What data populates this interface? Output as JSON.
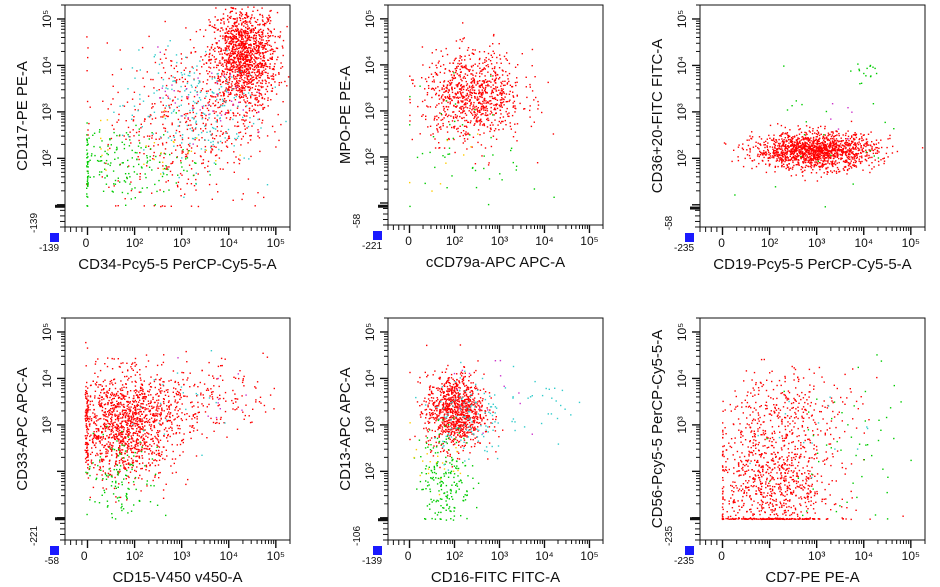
{
  "chart_data": [
    {
      "type": "scatter",
      "xlabel": "CD34-Pcy5-5 PerCP-Cy5-5-A",
      "ylabel": "CD117-PE PE-A",
      "x_min_label": "-139",
      "y_min_label": "-139",
      "x_ticks": [
        "0",
        "10²",
        "10³",
        "10⁴",
        "10⁵"
      ],
      "y_ticks": [
        "10²",
        "10³",
        "10⁴",
        "10⁵"
      ],
      "xlim": [
        -139,
        200000
      ],
      "ylim": [
        -139,
        200000
      ],
      "clusters": [
        {
          "color": "#ff0000",
          "x": 20000,
          "y": 15000,
          "sx": 0.22,
          "sy": 0.35,
          "n": 1400
        },
        {
          "color": "#ff0000",
          "x": 1200,
          "y": 600,
          "sx": 0.55,
          "sy": 0.55,
          "n": 500
        },
        {
          "color": "#00cc00",
          "x": 40,
          "y": 80,
          "sx": 0.5,
          "sy": 0.25,
          "n": 200
        },
        {
          "color": "#33cccc",
          "x": 1500,
          "y": 1200,
          "sx": 0.45,
          "sy": 0.4,
          "n": 220
        },
        {
          "color": "#cc33cc",
          "x": 3000,
          "y": 2500,
          "sx": 0.3,
          "sy": 0.3,
          "n": 40
        },
        {
          "color": "#ffcc00",
          "x": 300,
          "y": 200,
          "sx": 0.5,
          "sy": 0.3,
          "n": 25
        }
      ]
    },
    {
      "type": "scatter",
      "xlabel": "cCD79a-APC APC-A",
      "ylabel": "MPO-PE PE-A",
      "x_min_label": "-221",
      "y_min_label": "-58",
      "x_ticks": [
        "0",
        "10²",
        "10³",
        "10⁴",
        "10⁵"
      ],
      "y_ticks": [
        "10²",
        "10³",
        "10⁴",
        "10⁵"
      ],
      "xlim": [
        -221,
        200000
      ],
      "ylim": [
        -58,
        200000
      ],
      "clusters": [
        {
          "color": "#ff0000",
          "x": 250,
          "y": 2200,
          "sx": 0.35,
          "sy": 0.3,
          "n": 900
        },
        {
          "color": "#00cc00",
          "x": 300,
          "y": 150,
          "sx": 0.45,
          "sy": 0.45,
          "n": 50
        },
        {
          "color": "#ffcc00",
          "x": 100,
          "y": 80,
          "sx": 0.3,
          "sy": 0.3,
          "n": 8
        }
      ]
    },
    {
      "type": "scatter",
      "xlabel": "CD19-Pcy5-5 PerCP-Cy5-5-A",
      "ylabel": "CD36+20-FITC FITC-A",
      "x_min_label": "-235",
      "y_min_label": "-58",
      "x_ticks": [
        "0",
        "10²",
        "10³",
        "10⁴",
        "10⁵"
      ],
      "y_ticks": [
        "10²",
        "10³",
        "10⁴",
        "10⁵"
      ],
      "xlim": [
        -235,
        200000
      ],
      "ylim": [
        -58,
        200000
      ],
      "clusters": [
        {
          "color": "#ff0000",
          "x": 900,
          "y": 150,
          "sx": 0.4,
          "sy": 0.12,
          "n": 1500
        },
        {
          "color": "#00cc00",
          "x": 12000,
          "y": 7000,
          "sx": 0.1,
          "sy": 0.1,
          "n": 15
        },
        {
          "color": "#00cc00",
          "x": 2000,
          "y": 400,
          "sx": 0.6,
          "sy": 0.5,
          "n": 25
        },
        {
          "color": "#cc33cc",
          "x": 2500,
          "y": 600,
          "sx": 0.3,
          "sy": 0.3,
          "n": 6
        }
      ]
    },
    {
      "type": "scatter",
      "xlabel": "CD15-V450 v450-A",
      "ylabel": "CD33-APC APC-A",
      "x_min_label": "-58",
      "y_min_label": "-221",
      "x_ticks": [
        "0",
        "10²",
        "10³",
        "10⁴",
        "10⁵"
      ],
      "y_ticks": [
        "10³",
        "10⁴",
        "10⁵"
      ],
      "xlim": [
        -58,
        200000
      ],
      "ylim": [
        -221,
        200000
      ],
      "clusters": [
        {
          "color": "#ff0000",
          "x": 60,
          "y": 1000,
          "sx": 0.35,
          "sy": 0.35,
          "n": 1300
        },
        {
          "color": "#ff0000",
          "x": 1500,
          "y": 4000,
          "sx": 0.5,
          "sy": 0.25,
          "n": 250
        },
        {
          "color": "#00cc00",
          "x": 50,
          "y": 80,
          "sx": 0.25,
          "sy": 0.3,
          "n": 120
        },
        {
          "color": "#33cccc",
          "x": 1200,
          "y": 3000,
          "sx": 0.4,
          "sy": 0.3,
          "n": 20
        },
        {
          "color": "#cc33cc",
          "x": 5000,
          "y": 5000,
          "sx": 0.3,
          "sy": 0.3,
          "n": 10
        }
      ]
    },
    {
      "type": "scatter",
      "xlabel": "CD16-FITC FITC-A",
      "ylabel": "CD13-APC APC-A",
      "x_min_label": "-139",
      "y_min_label": "-106",
      "x_ticks": [
        "0",
        "10²",
        "10³",
        "10⁴",
        "10⁵"
      ],
      "y_ticks": [
        "10²",
        "10³",
        "10⁴",
        "10⁵"
      ],
      "xlim": [
        -139,
        200000
      ],
      "ylim": [
        -106,
        200000
      ],
      "clusters": [
        {
          "color": "#ff0000",
          "x": 100,
          "y": 2000,
          "sx": 0.2,
          "sy": 0.25,
          "n": 1000
        },
        {
          "color": "#00cc00",
          "x": 60,
          "y": 80,
          "sx": 0.18,
          "sy": 0.35,
          "n": 200
        },
        {
          "color": "#33cccc",
          "x": 200,
          "y": 1500,
          "sx": 0.25,
          "sy": 0.3,
          "n": 120
        },
        {
          "color": "#33cccc",
          "x": 10000,
          "y": 4000,
          "sx": 0.3,
          "sy": 0.2,
          "n": 25
        },
        {
          "color": "#cc33cc",
          "x": 400,
          "y": 3000,
          "sx": 0.3,
          "sy": 0.3,
          "n": 15
        },
        {
          "color": "#ffcc00",
          "x": 40,
          "y": 100,
          "sx": 0.2,
          "sy": 0.3,
          "n": 20
        }
      ]
    },
    {
      "type": "scatter",
      "xlabel": "CD7-PE PE-A",
      "ylabel": "CD56-Pcy5-5 PerCP-Cy5-5-A",
      "x_min_label": "-235",
      "y_min_label": "-235",
      "x_ticks": [
        "0",
        "10³",
        "10⁴",
        "10⁵"
      ],
      "y_ticks": [
        "10³",
        "10⁴",
        "10⁵"
      ],
      "xlim": [
        -235,
        200000
      ],
      "ylim": [
        -235,
        200000
      ],
      "clusters": [
        {
          "color": "#ff0000",
          "x": 120,
          "y": 60,
          "sx": 0.4,
          "sy": 0.5,
          "n": 1000
        },
        {
          "color": "#ff0000",
          "x": 300,
          "y": 3000,
          "sx": 0.45,
          "sy": 0.25,
          "n": 200
        },
        {
          "color": "#00cc00",
          "x": 3000,
          "y": 300,
          "sx": 0.4,
          "sy": 0.5,
          "n": 40
        },
        {
          "color": "#00cc00",
          "x": 15000,
          "y": 2000,
          "sx": 0.2,
          "sy": 0.5,
          "n": 15
        },
        {
          "color": "#33cccc",
          "x": 800,
          "y": 800,
          "sx": 0.4,
          "sy": 0.4,
          "n": 15
        }
      ]
    }
  ]
}
